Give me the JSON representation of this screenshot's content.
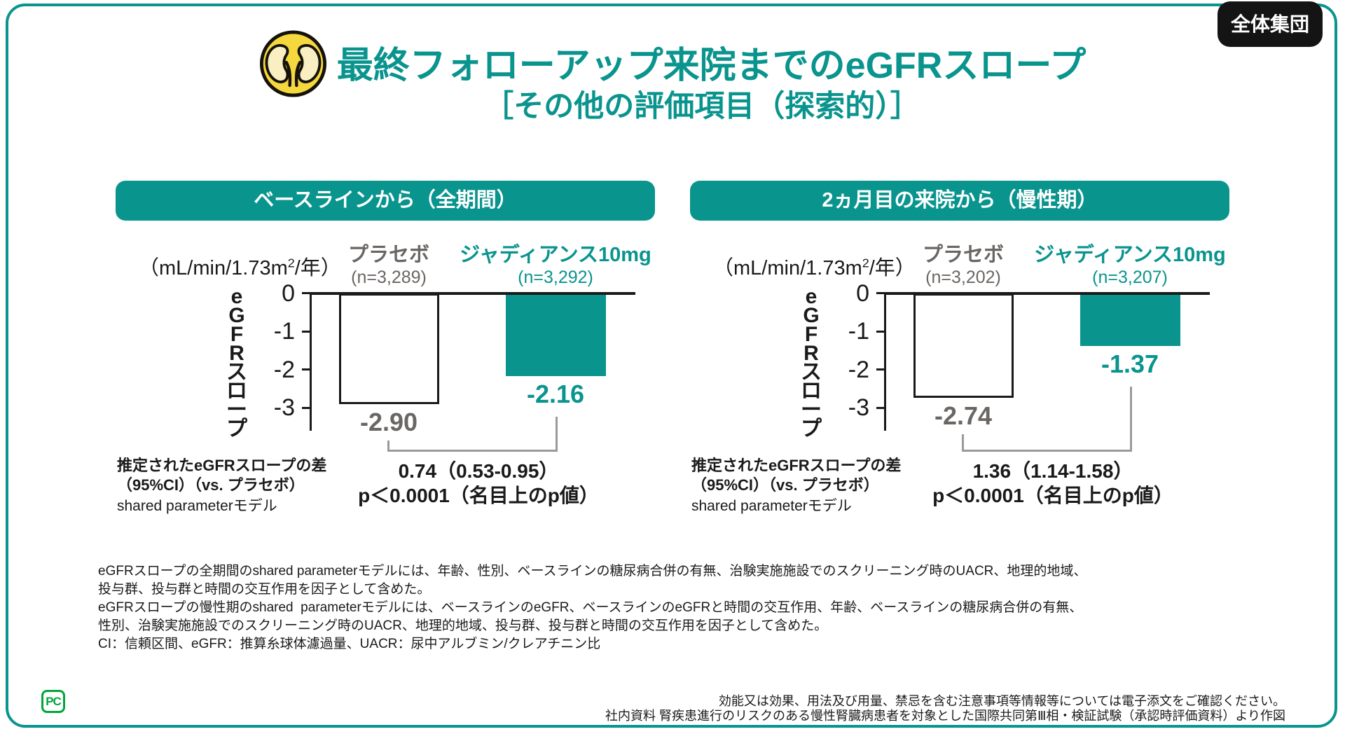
{
  "badge": "全体集団",
  "title": "最終フォローアップ来院までのeGFRスロープ",
  "subtitle": "［その他の評価項目（探索的）］",
  "colors": {
    "teal": "#0A948E",
    "gray": "#6A6663",
    "badge_black": "#141414",
    "logo_green": "#00A63C",
    "icon_yellow": "#F5D73E"
  },
  "kidney_icon": "kidneys-in-yellow-circle",
  "chart_data": [
    {
      "type": "bar",
      "panel_title": "ベースラインから（全期間）",
      "unit": {
        "pre": "（mL/min/1.73m",
        "sup": "2",
        "post": "/年）"
      },
      "y_axis_label": "eGFRスロープ",
      "y_ticks": [
        "0",
        "-1",
        "-2",
        "-3"
      ],
      "ylim": [
        -3.6,
        0
      ],
      "series": [
        {
          "name": "プラセボ",
          "n": "(n=3,289)",
          "value": -2.9,
          "label": "-2.90"
        },
        {
          "name": "ジャディアンス10mg",
          "n": "(n=3,292)",
          "value": -2.16,
          "label": "-2.16"
        }
      ],
      "difference": {
        "line1": "0.74（0.53-0.95）",
        "line2": "p＜0.0001（名目上のp値）"
      },
      "annotation": {
        "line1": "推定されたeGFRスロープの差",
        "line2": "（95%CI）（vs. プラセボ）",
        "line3": "shared parameterモデル"
      }
    },
    {
      "type": "bar",
      "panel_title": "2ヵ月目の来院から（慢性期）",
      "unit": {
        "pre": "（mL/min/1.73m",
        "sup": "2",
        "post": "/年）"
      },
      "y_axis_label": "eGFRスロープ",
      "y_ticks": [
        "0",
        "-1",
        "-2",
        "-3"
      ],
      "ylim": [
        -3.6,
        0
      ],
      "series": [
        {
          "name": "プラセボ",
          "n": "(n=3,202)",
          "value": -2.74,
          "label": "-2.74"
        },
        {
          "name": "ジャディアンス10mg",
          "n": "(n=3,207)",
          "value": -1.37,
          "label": "-1.37"
        }
      ],
      "difference": {
        "line1": "1.36（1.14-1.58）",
        "line2": "p＜0.0001（名目上のp値）"
      },
      "annotation": {
        "line1": "推定されたeGFRスロープの差",
        "line2": "（95%CI）（vs. プラセボ）",
        "line3": "shared parameterモデル"
      }
    }
  ],
  "footnotes": [
    "eGFRスロープの全期間のshared parameterモデルには、年齢、性別、ベースラインの糖尿病合併の有無、治験実施施設でのスクリーニング時のUACR、地理的地域、",
    "投与群、投与群と時間の交互作用を因子として含めた。",
    "eGFRスロープの慢性期のshared  parameterモデルには、ベースラインのeGFR、ベースラインのeGFRと時間の交互作用、年齢、ベースラインの糖尿病合併の有無、",
    "性別、治験実施施設でのスクリーニング時のUACR、地理的地域、投与群、投与群と時間の交互作用を因子として含めた。",
    "CI：信頼区間、eGFR：推算糸球体濾過量、UACR：尿中アルブミン/クレアチニン比"
  ],
  "sources": [
    "効能又は効果、用法及び用量、禁忌を含む注意事項等情報等については電子添文をご確認ください。",
    "社内資料 腎疾患進行のリスクのある慢性腎臓病患者を対象とした国際共同第Ⅲ相・検証試験（承認時評価資料）より作図"
  ],
  "logo": "PC"
}
